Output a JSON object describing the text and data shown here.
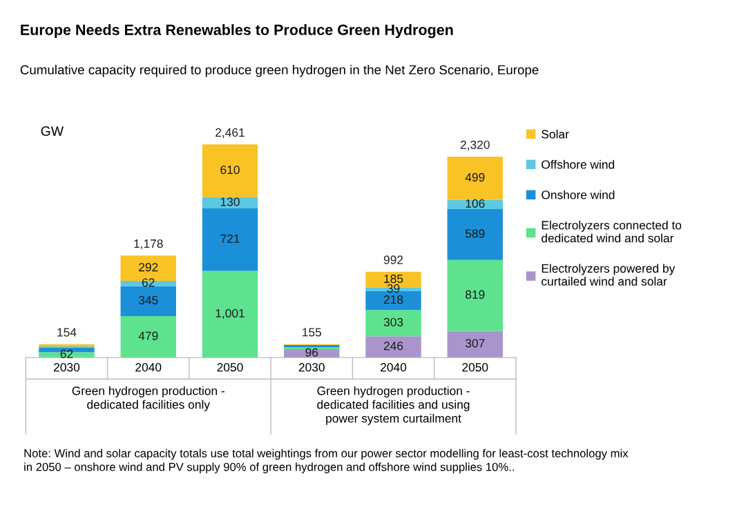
{
  "chart_data": {
    "type": "bar",
    "stacked": true,
    "title": "Europe Needs Extra Renewables to Produce Green Hydrogen",
    "subtitle": "Cumulative capacity required to produce green hydrogen in the Net Zero Scenario, Europe",
    "ylabel": "GW",
    "categories": [
      "2030",
      "2040",
      "2050",
      "2030",
      "2040",
      "2050"
    ],
    "series": [
      {
        "name": "Electrolyzers powered by curtailed wind and solar",
        "color": "#a995cc",
        "values": [
          null,
          null,
          null,
          96,
          246,
          307
        ],
        "value_labels": [
          null,
          null,
          null,
          "96",
          "246",
          "307"
        ]
      },
      {
        "name": "Electrolyzers connected to dedicated wind and solar",
        "color": "#5ee28e",
        "values": [
          62,
          479,
          1001,
          25,
          303,
          819
        ],
        "value_labels": [
          "62",
          "479",
          "1,001",
          null,
          "303",
          "819"
        ]
      },
      {
        "name": "Onshore wind",
        "color": "#1b90d8",
        "values": [
          55,
          345,
          721,
          24,
          218,
          589
        ],
        "value_labels": [
          null,
          "345",
          "721",
          null,
          "218",
          "589"
        ]
      },
      {
        "name": "Offshore wind",
        "color": "#5cc8e2",
        "values": [
          12,
          62,
          130,
          null,
          39,
          106
        ],
        "value_labels": [
          null,
          "62",
          "130",
          null,
          "39",
          "106"
        ]
      },
      {
        "name": "Solar",
        "color": "#f9c326",
        "values": [
          25,
          292,
          610,
          10,
          185,
          499
        ],
        "value_labels": [
          null,
          "292",
          "610",
          null,
          "185",
          "499"
        ]
      }
    ],
    "totals": [
      "154",
      "1,178",
      "2,461",
      "155",
      "992",
      "2,320"
    ],
    "legend": "right",
    "annotations": [
      "Green hydrogen production - dedicated facilities only",
      "Green hydrogen production - dedicated facilities and using power system curtailment",
      "Note: Wind and solar capacity totals use total weightings from our power sector modelling for least-cost technology mix in 2050 – onshore wind and PV supply 90% of green hydrogen and offshore wind supplies 10%.."
    ]
  }
}
